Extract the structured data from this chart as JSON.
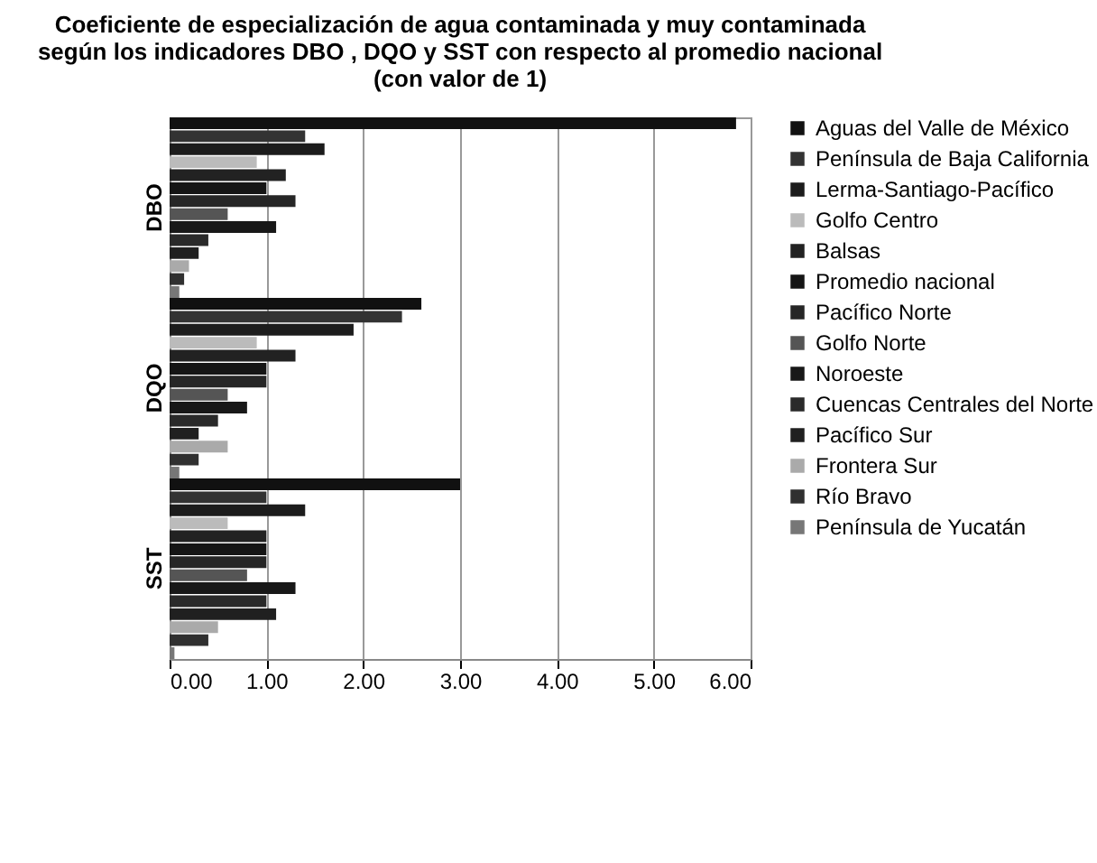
{
  "chart_data": {
    "type": "bar",
    "orientation": "horizontal",
    "title": "Coeficiente de especialización de agua contaminada y muy contaminada según los indicadores DBO , DQO y SST con respecto al promedio nacional (con valor de 1)",
    "categories": [
      "DBO",
      "DQO",
      "SST"
    ],
    "xlim": [
      0,
      6
    ],
    "xticks": [
      {
        "value": 0,
        "label": "0.00"
      },
      {
        "value": 1,
        "label": "1.00"
      },
      {
        "value": 2,
        "label": "2.00"
      },
      {
        "value": 3,
        "label": "3.00"
      },
      {
        "value": 4,
        "label": "4.00"
      },
      {
        "value": 5,
        "label": "5.00"
      },
      {
        "value": 6,
        "label": "6.00"
      }
    ],
    "grid": "x",
    "legend": "right",
    "series": [
      {
        "name": "Aguas del Valle de México",
        "color": "#111111",
        "values": [
          5.85,
          2.6,
          3.0
        ]
      },
      {
        "name": "Península de Baja California",
        "color": "#333333",
        "values": [
          1.4,
          2.4,
          1.0
        ]
      },
      {
        "name": "Lerma-Santiago-Pacífico",
        "color": "#1c1c1c",
        "values": [
          1.6,
          1.9,
          1.4
        ]
      },
      {
        "name": "Golfo Centro",
        "color": "#bbbbbb",
        "values": [
          0.9,
          0.9,
          0.6
        ]
      },
      {
        "name": "Balsas",
        "color": "#222222",
        "values": [
          1.2,
          1.3,
          1.0
        ]
      },
      {
        "name": "Promedio nacional",
        "color": "#151515",
        "values": [
          1.0,
          1.0,
          1.0
        ]
      },
      {
        "name": "Pacífico Norte",
        "color": "#262626",
        "values": [
          1.3,
          1.0,
          1.0
        ]
      },
      {
        "name": "Golfo Norte",
        "color": "#555555",
        "values": [
          0.6,
          0.6,
          0.8
        ]
      },
      {
        "name": "Noroeste",
        "color": "#181818",
        "values": [
          1.1,
          0.8,
          1.3
        ]
      },
      {
        "name": "Cuencas Centrales del Norte",
        "color": "#2a2a2a",
        "values": [
          0.4,
          0.5,
          1.0
        ]
      },
      {
        "name": "Pacífico Sur",
        "color": "#202020",
        "values": [
          0.3,
          0.3,
          1.1
        ]
      },
      {
        "name": "Frontera Sur",
        "color": "#aaaaaa",
        "values": [
          0.2,
          0.6,
          0.5
        ]
      },
      {
        "name": "Río Bravo",
        "color": "#303030",
        "values": [
          0.15,
          0.3,
          0.4
        ]
      },
      {
        "name": "Península de Yucatán",
        "color": "#777777",
        "values": [
          0.1,
          0.1,
          0.05
        ]
      }
    ]
  }
}
